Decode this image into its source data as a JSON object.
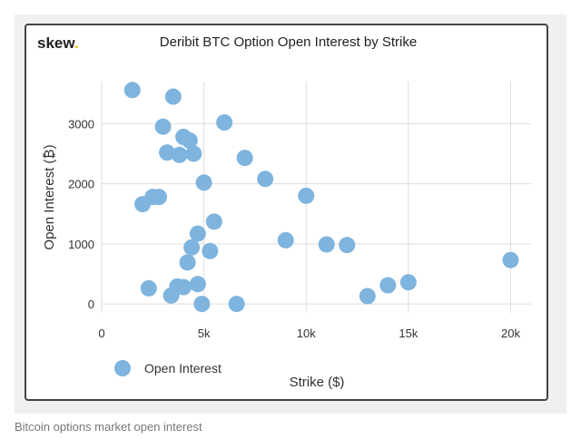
{
  "brand": {
    "name": "skew",
    "dot": "."
  },
  "caption": "Bitcoin options market open interest",
  "chart_data": {
    "type": "scatter",
    "title": "Deribit BTC Option Open Interest by Strike",
    "xlabel": "Strike ($)",
    "ylabel": "Open Interest (₿)",
    "xlim": [
      0,
      21000
    ],
    "ylim": [
      -150,
      3700
    ],
    "x_ticks": [
      {
        "value": 0,
        "label": "0"
      },
      {
        "value": 5000,
        "label": "5k"
      },
      {
        "value": 10000,
        "label": "10k"
      },
      {
        "value": 15000,
        "label": "15k"
      },
      {
        "value": 20000,
        "label": "20k"
      }
    ],
    "y_ticks": [
      {
        "value": 0,
        "label": "0"
      },
      {
        "value": 1000,
        "label": "1000"
      },
      {
        "value": 2000,
        "label": "2000"
      },
      {
        "value": 3000,
        "label": "3000"
      }
    ],
    "grid": true,
    "legend_position": "bottom-left",
    "series": [
      {
        "name": "Open Interest",
        "color": "#7eb4de",
        "points": [
          {
            "x": 1500,
            "y": 3560
          },
          {
            "x": 3500,
            "y": 3450
          },
          {
            "x": 3000,
            "y": 2950
          },
          {
            "x": 6000,
            "y": 3020
          },
          {
            "x": 4000,
            "y": 2780
          },
          {
            "x": 4300,
            "y": 2720
          },
          {
            "x": 3200,
            "y": 2520
          },
          {
            "x": 3800,
            "y": 2480
          },
          {
            "x": 4500,
            "y": 2500
          },
          {
            "x": 7000,
            "y": 2430
          },
          {
            "x": 8000,
            "y": 2080
          },
          {
            "x": 5000,
            "y": 2020
          },
          {
            "x": 10000,
            "y": 1800
          },
          {
            "x": 2500,
            "y": 1780
          },
          {
            "x": 2800,
            "y": 1780
          },
          {
            "x": 2000,
            "y": 1660
          },
          {
            "x": 5500,
            "y": 1370
          },
          {
            "x": 4700,
            "y": 1170
          },
          {
            "x": 9000,
            "y": 1060
          },
          {
            "x": 11000,
            "y": 990
          },
          {
            "x": 12000,
            "y": 980
          },
          {
            "x": 4400,
            "y": 940
          },
          {
            "x": 5300,
            "y": 880
          },
          {
            "x": 4200,
            "y": 690
          },
          {
            "x": 20000,
            "y": 730
          },
          {
            "x": 2300,
            "y": 260
          },
          {
            "x": 3700,
            "y": 290
          },
          {
            "x": 4000,
            "y": 280
          },
          {
            "x": 4700,
            "y": 330
          },
          {
            "x": 3400,
            "y": 140
          },
          {
            "x": 15000,
            "y": 360
          },
          {
            "x": 14000,
            "y": 310
          },
          {
            "x": 13000,
            "y": 130
          },
          {
            "x": 4900,
            "y": 0
          },
          {
            "x": 6600,
            "y": 0
          }
        ]
      }
    ]
  }
}
